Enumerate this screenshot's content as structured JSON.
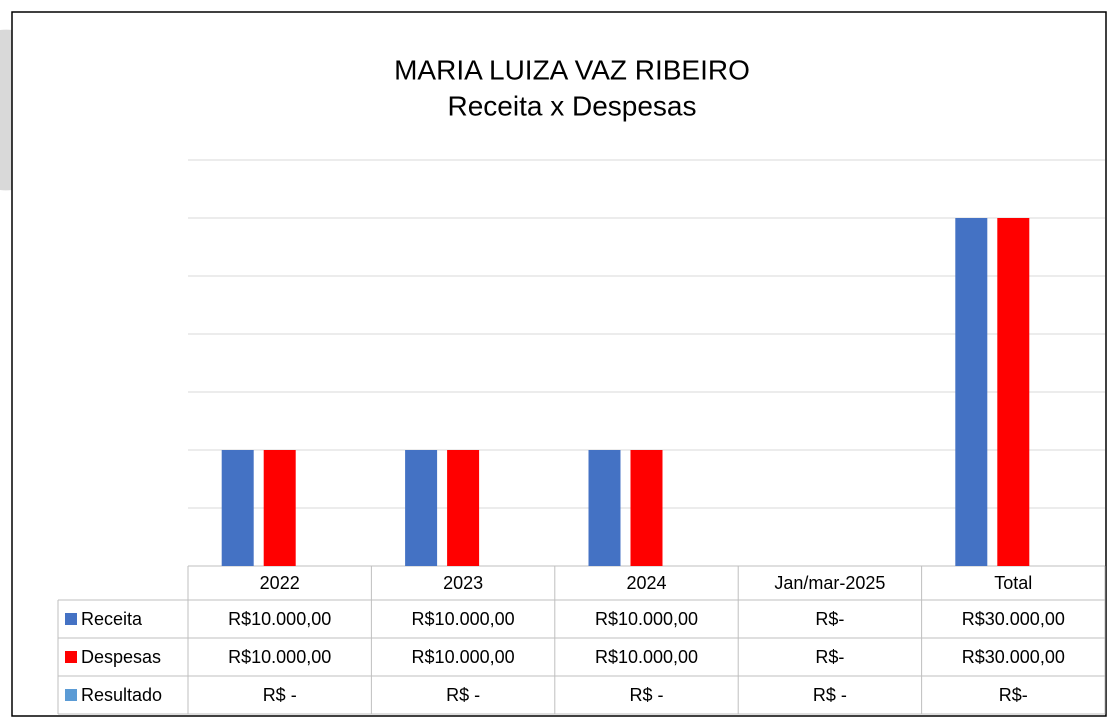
{
  "chart_data": {
    "type": "bar",
    "title": "MARIA LUIZA VAZ RIBEIRO",
    "subtitle": "Receita x Despesas",
    "categories": [
      "2022",
      "2023",
      "2024",
      "Jan/mar-2025",
      "Total"
    ],
    "series": [
      {
        "name": "Receita",
        "color": "#4472c4",
        "values": [
          10000,
          10000,
          10000,
          0,
          30000
        ],
        "value_labels": [
          "R$10.000,00",
          "R$10.000,00",
          "R$10.000,00",
          "R$-",
          "R$30.000,00"
        ]
      },
      {
        "name": "Despesas",
        "color": "#ff0000",
        "values": [
          10000,
          10000,
          10000,
          0,
          30000
        ],
        "value_labels": [
          "R$10.000,00",
          "R$10.000,00",
          "R$10.000,00",
          "R$-",
          "R$30.000,00"
        ]
      },
      {
        "name": "Resultado",
        "color": "#5b9bd5",
        "values": [
          0,
          0,
          0,
          0,
          0
        ],
        "value_labels": [
          "R$ -",
          "R$ -",
          "R$ -",
          "R$ -",
          "R$-"
        ]
      }
    ],
    "ylim": [
      0,
      35000
    ],
    "yticks": [
      0,
      5000,
      10000,
      15000,
      20000,
      25000,
      30000,
      35000
    ],
    "grid": true
  }
}
